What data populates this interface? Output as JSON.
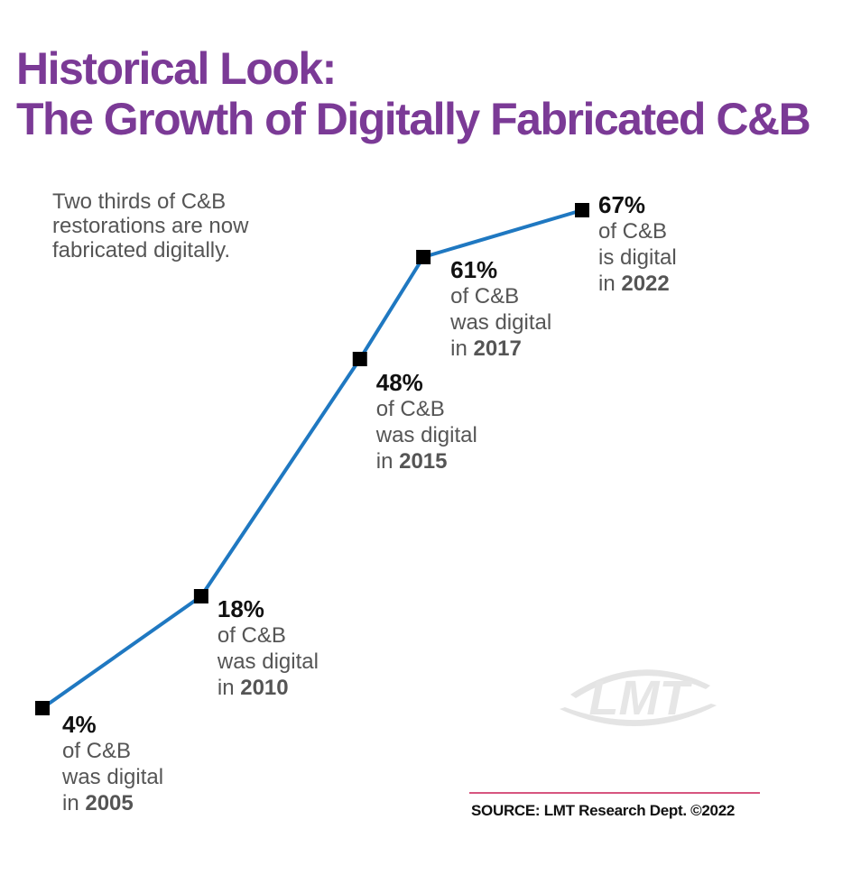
{
  "title": {
    "line1": "Historical Look:",
    "line2": "The Growth of Digitally Fabricated C&B"
  },
  "note": "Two thirds of C&B restorations are now fabricated digitally.",
  "colors": {
    "title": "#7b3a96",
    "line": "#1f78c1",
    "marker": "#000000",
    "rule": "#d7557f"
  },
  "watermark": {
    "text": "LMT"
  },
  "source": "SOURCE: LMT Research Dept. ©2022",
  "chart_data": {
    "type": "line",
    "x": [
      2005,
      2010,
      2015,
      2017,
      2022
    ],
    "series": [
      {
        "values": [
          4,
          18,
          48,
          61,
          67
        ]
      }
    ],
    "annotations": [
      {
        "value": "4%",
        "line1": "of C&B",
        "line2": "was digital",
        "prefix": "in ",
        "year": "2005"
      },
      {
        "value": "18%",
        "line1": "of C&B",
        "line2": "was digital",
        "prefix": "in ",
        "year": "2010"
      },
      {
        "value": "48%",
        "line1": "of C&B",
        "line2": "was digital",
        "prefix": "in ",
        "year": "2015"
      },
      {
        "value": "61%",
        "line1": "of C&B",
        "line2": "was digital",
        "prefix": "in ",
        "year": "2017"
      },
      {
        "value": "67%",
        "line1": "of C&B",
        "line2": "is digital",
        "prefix": "in ",
        "year": "2022"
      }
    ],
    "grid": false,
    "axes_visible": false
  }
}
